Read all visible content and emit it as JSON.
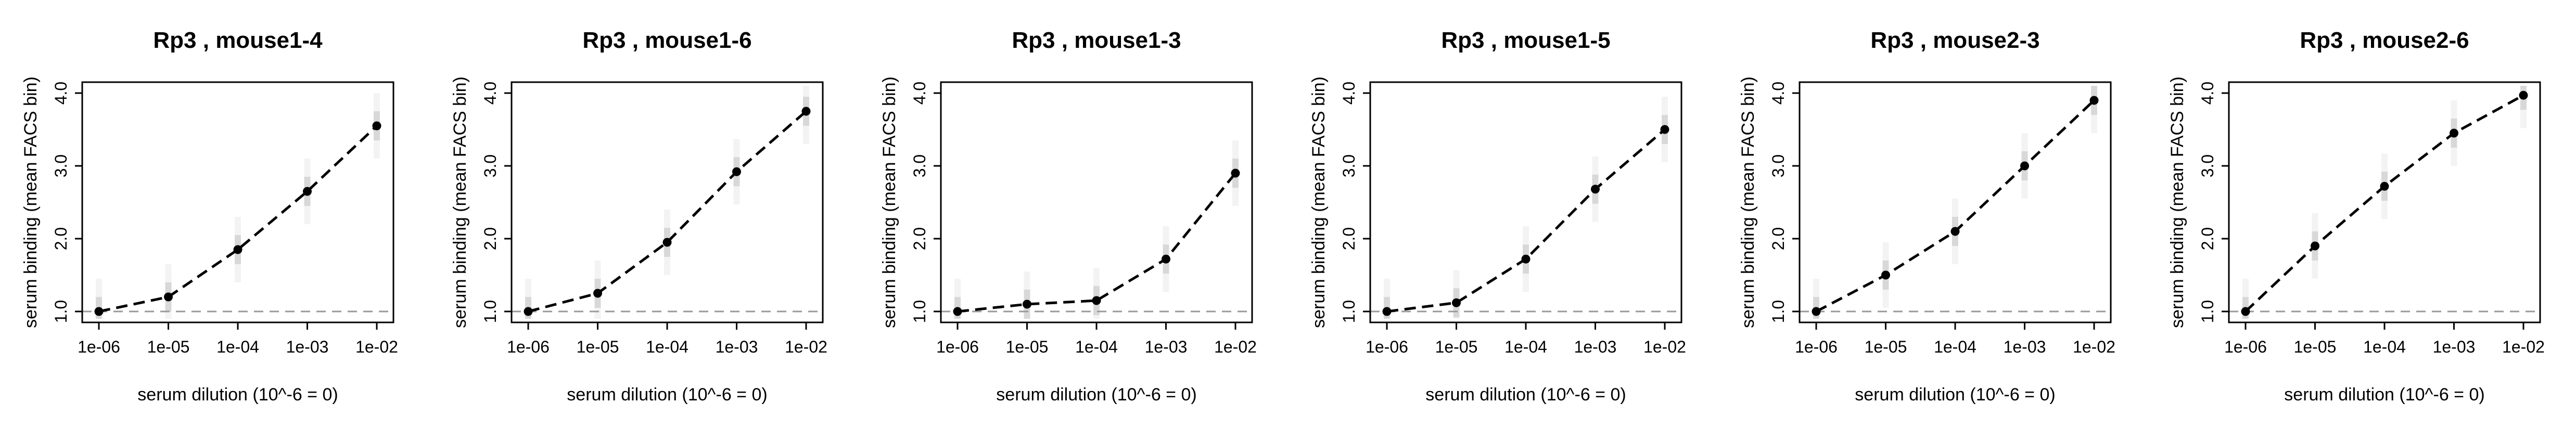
{
  "chart_data": [
    {
      "type": "line",
      "title": "Rp3 , mouse1-4",
      "xlabel": "serum dilution (10^-6 = 0)",
      "ylabel": "serum binding (mean FACS bin)",
      "x_scale": "log",
      "xticks": [
        "1e-06",
        "1e-05",
        "1e-04",
        "1e-03",
        "1e-02"
      ],
      "yticks": [
        "1.0",
        "2.0",
        "3.0",
        "4.0"
      ],
      "xlim": [
        1e-06,
        0.01
      ],
      "ylim": [
        0.85,
        4.15
      ],
      "baseline": 1.0,
      "series": [
        {
          "x": [
            1e-06,
            1e-05,
            0.0001,
            0.001,
            0.01
          ],
          "values": [
            1.0,
            1.2,
            1.85,
            2.65,
            3.55
          ]
        }
      ]
    },
    {
      "type": "line",
      "title": "Rp3 , mouse1-6",
      "xlabel": "serum dilution (10^-6 = 0)",
      "ylabel": "serum binding (mean FACS bin)",
      "x_scale": "log",
      "xticks": [
        "1e-06",
        "1e-05",
        "1e-04",
        "1e-03",
        "1e-02"
      ],
      "yticks": [
        "1.0",
        "2.0",
        "3.0",
        "4.0"
      ],
      "xlim": [
        1e-06,
        0.01
      ],
      "ylim": [
        0.85,
        4.15
      ],
      "baseline": 1.0,
      "series": [
        {
          "x": [
            1e-06,
            1e-05,
            0.0001,
            0.001,
            0.01
          ],
          "values": [
            1.0,
            1.25,
            1.95,
            2.92,
            3.75
          ]
        }
      ]
    },
    {
      "type": "line",
      "title": "Rp3 , mouse1-3",
      "xlabel": "serum dilution (10^-6 = 0)",
      "ylabel": "serum binding (mean FACS bin)",
      "x_scale": "log",
      "xticks": [
        "1e-06",
        "1e-05",
        "1e-04",
        "1e-03",
        "1e-02"
      ],
      "yticks": [
        "1.0",
        "2.0",
        "3.0",
        "4.0"
      ],
      "xlim": [
        1e-06,
        0.01
      ],
      "ylim": [
        0.85,
        4.15
      ],
      "baseline": 1.0,
      "series": [
        {
          "x": [
            1e-06,
            1e-05,
            0.0001,
            0.001,
            0.01
          ],
          "values": [
            1.0,
            1.1,
            1.15,
            1.72,
            2.9
          ]
        }
      ]
    },
    {
      "type": "line",
      "title": "Rp3 , mouse1-5",
      "xlabel": "serum dilution (10^-6 = 0)",
      "ylabel": "serum binding (mean FACS bin)",
      "x_scale": "log",
      "xticks": [
        "1e-06",
        "1e-05",
        "1e-04",
        "1e-03",
        "1e-02"
      ],
      "yticks": [
        "1.0",
        "2.0",
        "3.0",
        "4.0"
      ],
      "xlim": [
        1e-06,
        0.01
      ],
      "ylim": [
        0.85,
        4.15
      ],
      "baseline": 1.0,
      "series": [
        {
          "x": [
            1e-06,
            1e-05,
            0.0001,
            0.001,
            0.01
          ],
          "values": [
            1.0,
            1.12,
            1.72,
            2.68,
            3.5
          ]
        }
      ]
    },
    {
      "type": "line",
      "title": "Rp3 , mouse2-3",
      "xlabel": "serum dilution (10^-6 = 0)",
      "ylabel": "serum binding (mean FACS bin)",
      "x_scale": "log",
      "xticks": [
        "1e-06",
        "1e-05",
        "1e-04",
        "1e-03",
        "1e-02"
      ],
      "yticks": [
        "1.0",
        "2.0",
        "3.0",
        "4.0"
      ],
      "xlim": [
        1e-06,
        0.01
      ],
      "ylim": [
        0.85,
        4.15
      ],
      "baseline": 1.0,
      "series": [
        {
          "x": [
            1e-06,
            1e-05,
            0.0001,
            0.001,
            0.01
          ],
          "values": [
            1.0,
            1.5,
            2.1,
            3.0,
            3.9
          ]
        }
      ]
    },
    {
      "type": "line",
      "title": "Rp3 , mouse2-6",
      "xlabel": "serum dilution (10^-6 = 0)",
      "ylabel": "serum binding (mean FACS bin)",
      "x_scale": "log",
      "xticks": [
        "1e-06",
        "1e-05",
        "1e-04",
        "1e-03",
        "1e-02"
      ],
      "yticks": [
        "1.0",
        "2.0",
        "3.0",
        "4.0"
      ],
      "xlim": [
        1e-06,
        0.01
      ],
      "ylim": [
        0.85,
        4.15
      ],
      "baseline": 1.0,
      "series": [
        {
          "x": [
            1e-06,
            1e-05,
            0.0001,
            0.001,
            0.01
          ],
          "values": [
            1.0,
            1.9,
            2.72,
            3.45,
            3.97
          ]
        }
      ]
    }
  ],
  "colors": {
    "line": "#000000",
    "point": "#000000",
    "baseline": "#999999",
    "distribution": "#9a9a9a",
    "axis": "#000000"
  }
}
